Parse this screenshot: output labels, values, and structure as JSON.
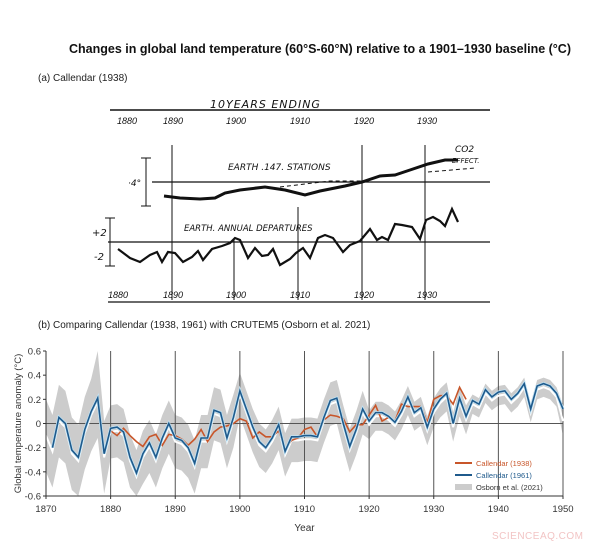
{
  "title": "Changes in global land temperature (60°S-60°N) relative to a 1901–1930 baseline (°C)",
  "panel_a": {
    "label": "(a) Callendar (1938)",
    "header": "10YEARS ENDING",
    "top_years": [
      "1880",
      "1890",
      "1900",
      "1910",
      "1920",
      "1930"
    ],
    "bottom_years": [
      "1880",
      "1890",
      "1900",
      "1910",
      "1920",
      "1930"
    ],
    "upper_label": "EARTH .147. STATIONS",
    "co2_label": "CO2",
    "effect_label": "EFFECT.",
    "scale_upper": "·4°",
    "lower_label": "EARTH. ANNUAL DEPARTURES",
    "scale_plus": "+2",
    "scale_minus": "-2"
  },
  "panel_b": {
    "label": "(b) Comparing Callendar (1938, 1961) with CRUTEM5 (Osborn et al. 2021)"
  },
  "watermark": "SCIENCEAQ.COM",
  "chart_data": {
    "type": "line",
    "xlabel": "Year",
    "ylabel": "Global temperature anomaly (°C)",
    "xlim": [
      1870,
      1950
    ],
    "ylim": [
      -0.6,
      0.6
    ],
    "xticks": [
      1870,
      1880,
      1890,
      1900,
      1910,
      1920,
      1930,
      1940,
      1950
    ],
    "yticks": [
      0.6,
      0.4,
      0.2,
      0,
      -0.2,
      -0.4,
      -0.6
    ],
    "ytick_labels": [
      "0.6",
      "0.4",
      "0.2",
      "0",
      "-0.2",
      "-0.4",
      "-0.6"
    ],
    "vertical_gridlines": [
      1880,
      1890,
      1900,
      1910,
      1920,
      1930,
      1940,
      1950
    ],
    "zero_line": true,
    "legend_position": "bottom-right",
    "series": [
      {
        "name": "Callendar (1938)",
        "color": "#c8562a",
        "start_year": 1880,
        "values": [
          -0.06,
          -0.1,
          -0.04,
          -0.1,
          -0.15,
          -0.19,
          -0.11,
          -0.09,
          -0.18,
          -0.09,
          -0.1,
          -0.13,
          -0.18,
          -0.13,
          -0.05,
          -0.15,
          -0.07,
          -0.03,
          -0.02,
          0.0,
          0.04,
          0.02,
          -0.12,
          -0.07,
          -0.11,
          -0.11,
          -0.06,
          -0.21,
          -0.14,
          -0.12,
          -0.05,
          -0.03,
          -0.11,
          0.03,
          0.07,
          0.06,
          0.04,
          -0.07,
          -0.01,
          -0.01,
          0.07,
          0.15,
          0.02,
          0.05,
          0.02,
          0.16,
          0.14,
          0.14,
          0.14,
          0.01,
          0.2,
          0.23,
          0.23,
          0.16,
          0.3,
          0.2
        ]
      },
      {
        "name": "Callendar (1961)",
        "color": "#1f5a8c",
        "start_year": 1871,
        "values": [
          -0.2,
          0.05,
          0.0,
          -0.22,
          -0.28,
          -0.05,
          0.1,
          0.21,
          -0.25,
          -0.04,
          -0.03,
          -0.07,
          -0.28,
          -0.41,
          -0.25,
          -0.16,
          -0.28,
          -0.12,
          0.0,
          -0.12,
          -0.14,
          -0.2,
          -0.33,
          -0.12,
          -0.12,
          0.11,
          0.09,
          -0.12,
          0.05,
          0.27,
          0.12,
          -0.03,
          -0.15,
          -0.2,
          -0.12,
          -0.01,
          -0.23,
          -0.11,
          -0.11,
          -0.1,
          -0.1,
          -0.11,
          0.05,
          0.19,
          0.21,
          0.0,
          -0.19,
          -0.05,
          0.12,
          0.02,
          0.09,
          0.09,
          0.06,
          0.01,
          0.1,
          0.22,
          0.09,
          0.13,
          -0.03,
          0.12,
          0.2,
          0.25,
          0.0,
          0.21,
          0.06,
          0.19,
          0.16,
          0.28,
          0.22,
          0.26,
          0.27,
          0.2,
          0.25,
          0.33,
          0.12,
          0.31,
          0.33,
          0.31,
          0.25,
          0.12
        ]
      },
      {
        "name": "Osborn et al. (2021)",
        "color": "#cccccc",
        "median_color": "#ffffff",
        "start_year": 1870,
        "median": [
          -0.1,
          -0.23,
          0.02,
          -0.03,
          -0.25,
          -0.31,
          -0.08,
          0.07,
          0.18,
          -0.28,
          -0.07,
          -0.06,
          -0.1,
          -0.31,
          -0.44,
          -0.28,
          -0.19,
          -0.31,
          -0.15,
          -0.03,
          -0.15,
          -0.17,
          -0.23,
          -0.36,
          -0.15,
          -0.15,
          0.08,
          0.06,
          -0.15,
          0.02,
          0.24,
          0.09,
          -0.06,
          -0.18,
          -0.23,
          -0.15,
          -0.04,
          -0.26,
          -0.14,
          -0.14,
          -0.13,
          -0.13,
          -0.14,
          0.02,
          0.16,
          0.18,
          -0.03,
          -0.22,
          -0.08,
          0.09,
          -0.01,
          0.06,
          0.06,
          0.03,
          -0.02,
          0.07,
          0.19,
          0.06,
          0.1,
          -0.06,
          0.09,
          0.17,
          0.22,
          -0.03,
          0.18,
          0.03,
          0.16,
          0.13,
          0.25,
          0.19,
          0.23,
          0.24,
          0.17,
          0.22,
          0.3,
          0.09,
          0.28,
          0.3,
          0.28,
          0.22,
          0.02
        ],
        "lower": [
          -0.4,
          -0.53,
          -0.28,
          -0.33,
          -0.55,
          -0.6,
          -0.38,
          -0.23,
          -0.12,
          -0.58,
          -0.29,
          -0.28,
          -0.32,
          -0.53,
          -0.6,
          -0.5,
          -0.41,
          -0.53,
          -0.37,
          -0.25,
          -0.37,
          -0.39,
          -0.45,
          -0.58,
          -0.37,
          -0.37,
          -0.14,
          -0.16,
          -0.37,
          -0.2,
          0.06,
          -0.09,
          -0.24,
          -0.36,
          -0.41,
          -0.33,
          -0.22,
          -0.44,
          -0.32,
          -0.32,
          -0.31,
          -0.31,
          -0.32,
          -0.16,
          -0.02,
          0.0,
          -0.21,
          -0.4,
          -0.26,
          -0.09,
          -0.13,
          -0.06,
          -0.06,
          -0.09,
          -0.14,
          -0.05,
          0.07,
          -0.06,
          -0.02,
          -0.18,
          -0.03,
          0.05,
          0.1,
          -0.15,
          0.06,
          -0.09,
          0.08,
          0.05,
          0.17,
          0.11,
          0.15,
          0.16,
          0.09,
          0.14,
          0.22,
          0.01,
          0.2,
          0.22,
          0.2,
          0.14,
          -0.1
        ],
        "upper": [
          0.2,
          0.07,
          0.32,
          0.27,
          0.05,
          -0.01,
          0.22,
          0.37,
          0.6,
          0.02,
          0.15,
          0.16,
          0.12,
          -0.09,
          -0.22,
          -0.06,
          0.03,
          -0.09,
          0.07,
          0.19,
          0.07,
          0.05,
          -0.01,
          -0.14,
          0.07,
          0.07,
          0.3,
          0.28,
          0.07,
          0.24,
          0.42,
          0.27,
          0.12,
          0.0,
          -0.05,
          0.03,
          0.14,
          -0.08,
          0.04,
          0.04,
          0.05,
          0.05,
          0.04,
          0.2,
          0.34,
          0.36,
          0.15,
          -0.04,
          0.1,
          0.27,
          0.11,
          0.18,
          0.18,
          0.15,
          0.1,
          0.19,
          0.31,
          0.18,
          0.22,
          0.06,
          0.21,
          0.29,
          0.34,
          0.09,
          0.3,
          0.15,
          0.24,
          0.21,
          0.33,
          0.27,
          0.31,
          0.32,
          0.25,
          0.3,
          0.38,
          0.17,
          0.36,
          0.38,
          0.36,
          0.3,
          0.15
        ]
      }
    ]
  }
}
